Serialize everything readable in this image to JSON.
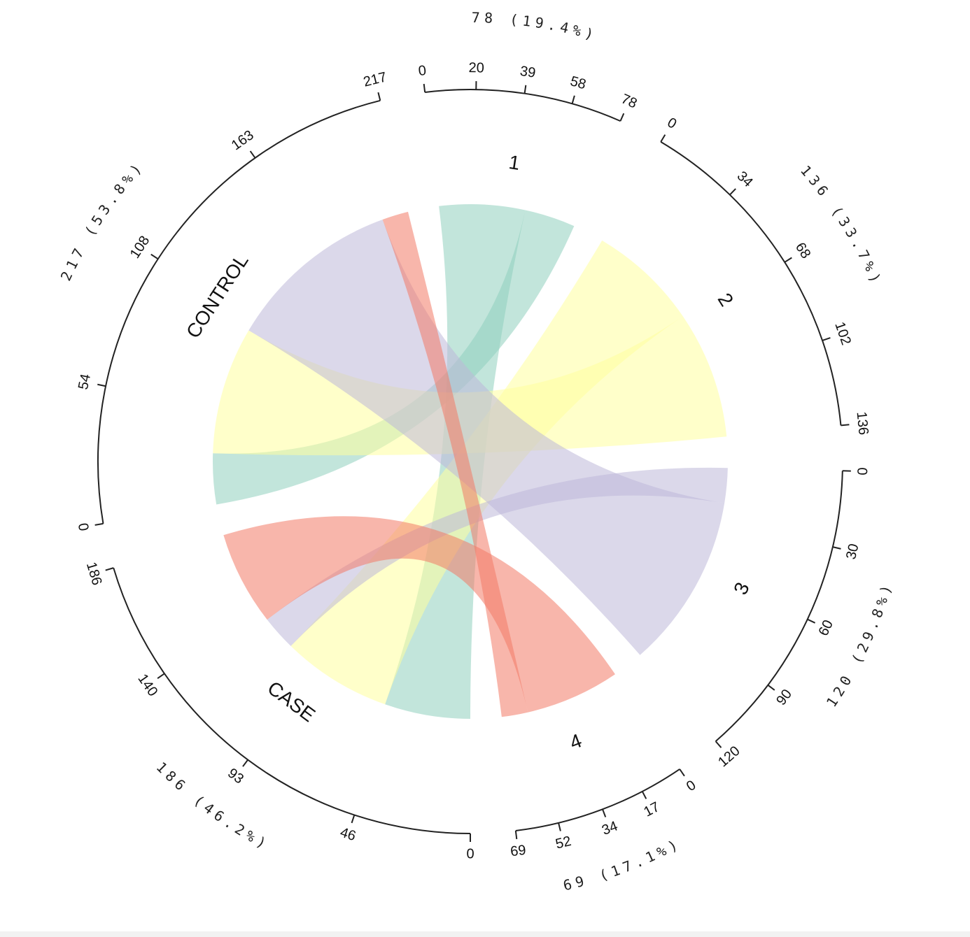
{
  "chart_data": {
    "type": "chord",
    "sectors": [
      {
        "id": "1",
        "label": "1",
        "total": 78,
        "total_label": "78 (19.4%)",
        "ticks": [
          0,
          20,
          39,
          58,
          78
        ]
      },
      {
        "id": "2",
        "label": "2",
        "total": 136,
        "total_label": "136 (33.7%)",
        "ticks": [
          0,
          34,
          68,
          102,
          136
        ]
      },
      {
        "id": "3",
        "label": "3",
        "total": 120,
        "total_label": "120 (29.8%)",
        "ticks": [
          0,
          30,
          60,
          90,
          120
        ]
      },
      {
        "id": "4",
        "label": "4",
        "total": 69,
        "total_label": "69 (17.1%)",
        "ticks": [
          0,
          17,
          34,
          52,
          69
        ]
      },
      {
        "id": "CASE",
        "label": "CASE",
        "total": 186,
        "total_label": "186 (46.2%)",
        "ticks": [
          0,
          46,
          93,
          140,
          186
        ]
      },
      {
        "id": "CONTROL",
        "label": "CONTROL",
        "total": 217,
        "total_label": "217 (53.8%)",
        "ticks": [
          0,
          54,
          108,
          163,
          217
        ]
      }
    ],
    "links": [
      {
        "from": "1",
        "to": "CASE",
        "value": 49,
        "color": "#8fcfbd"
      },
      {
        "from": "1",
        "to": "CONTROL",
        "value": 29,
        "color": "#8fcfbd"
      },
      {
        "from": "2",
        "to": "CASE",
        "value": 63,
        "color": "#ffff9e"
      },
      {
        "from": "2",
        "to": "CONTROL",
        "value": 73,
        "color": "#ffff9e"
      },
      {
        "from": "3",
        "to": "CASE",
        "value": 20,
        "color": "#bdb8d8"
      },
      {
        "from": "3",
        "to": "CONTROL",
        "value": 100,
        "color": "#bdb8d8"
      },
      {
        "from": "4",
        "to": "CASE",
        "value": 54,
        "color": "#f27a66"
      },
      {
        "from": "4",
        "to": "CONTROL",
        "value": 15,
        "color": "#f27a66"
      }
    ]
  }
}
